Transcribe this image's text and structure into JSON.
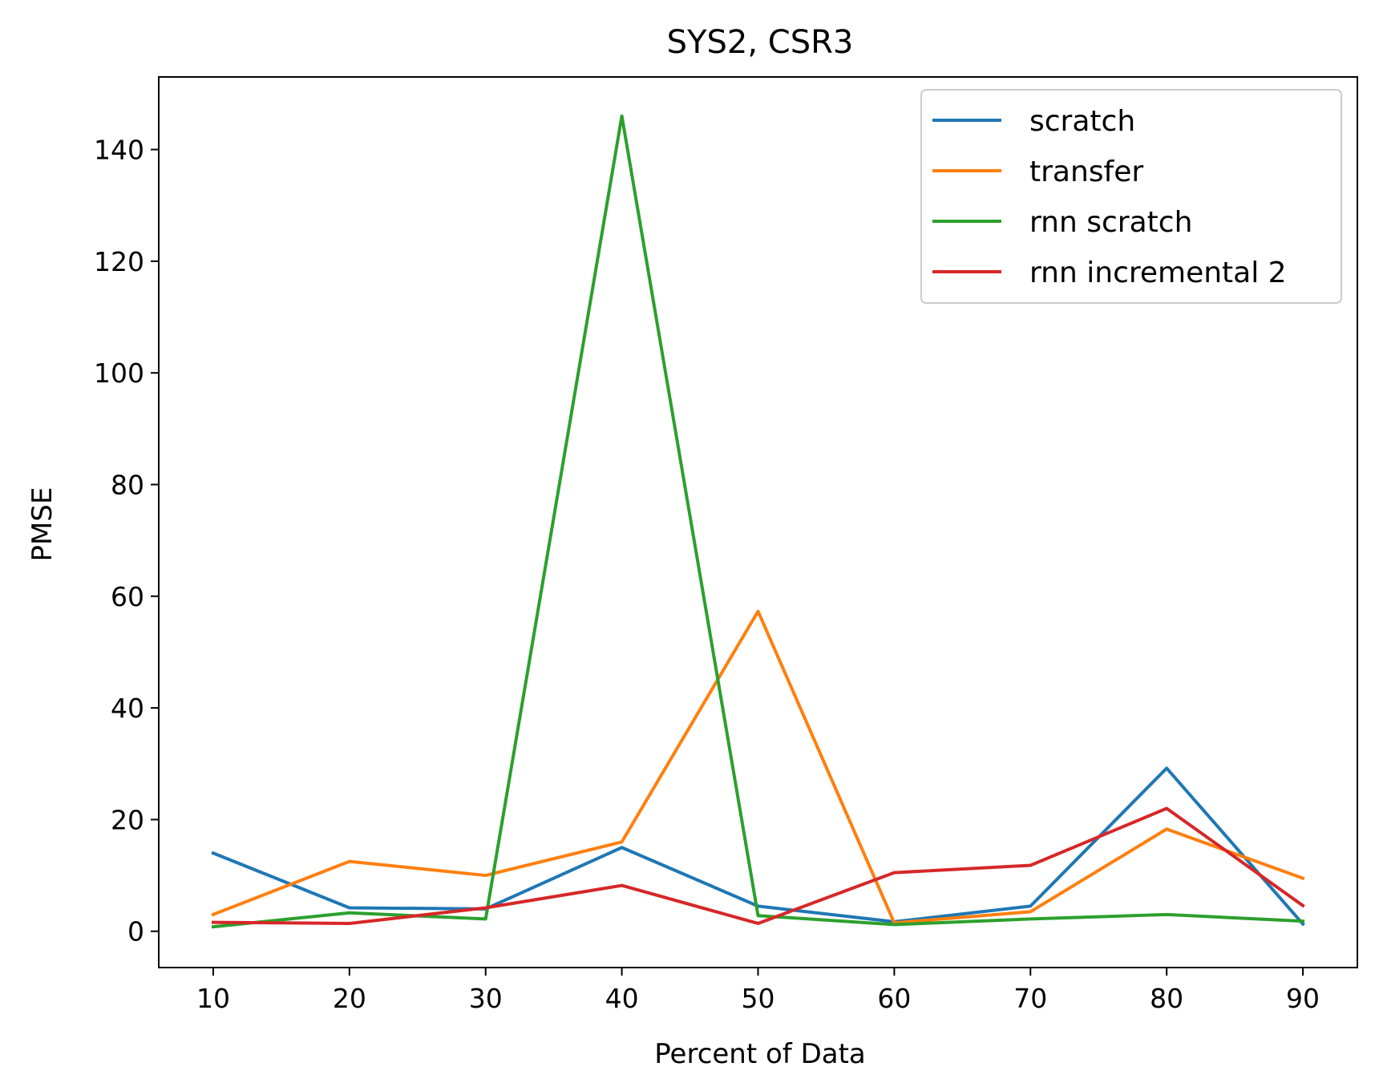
{
  "chart_data": {
    "type": "line",
    "title": "SYS2, CSR3",
    "xlabel": "Percent of Data",
    "ylabel": "PMSE",
    "x": [
      10,
      20,
      30,
      40,
      50,
      60,
      70,
      80,
      90
    ],
    "xticks": [
      "10",
      "20",
      "30",
      "40",
      "50",
      "60",
      "70",
      "80",
      "90"
    ],
    "yticks": [
      "0",
      "20",
      "40",
      "60",
      "80",
      "100",
      "120",
      "140"
    ],
    "xlim": [
      6,
      94
    ],
    "ylim": [
      -6.5,
      153
    ],
    "grid": false,
    "legend_position": "top-right",
    "series": [
      {
        "name": "scratch",
        "color": "#1f77b4",
        "values": [
          14.0,
          4.2,
          4.0,
          15.0,
          4.5,
          1.7,
          4.5,
          29.2,
          1.3
        ]
      },
      {
        "name": "transfer",
        "color": "#ff7f0e",
        "values": [
          3.0,
          12.5,
          10.0,
          16.0,
          57.3,
          1.5,
          3.5,
          18.3,
          9.5
        ]
      },
      {
        "name": "rnn scratch",
        "color": "#2ca02c",
        "values": [
          0.8,
          3.3,
          2.2,
          146.0,
          2.8,
          1.2,
          2.2,
          3.0,
          1.8
        ]
      },
      {
        "name": "rnn incremental 2",
        "color": "#d62728",
        "values": [
          1.6,
          1.4,
          4.2,
          8.2,
          1.4,
          10.5,
          11.8,
          22.0,
          4.6
        ]
      }
    ]
  }
}
